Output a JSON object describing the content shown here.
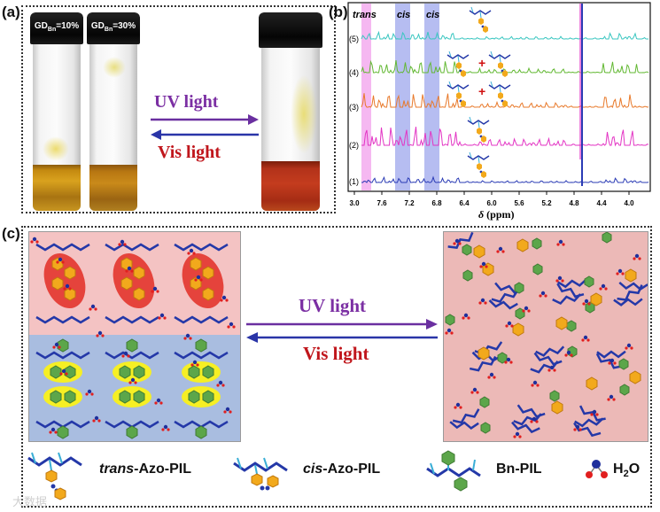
{
  "panel_labels": {
    "a": "(a)",
    "b": "(b)",
    "c": "(c)"
  },
  "vials": {
    "left": {
      "label_base": "GD",
      "label_sub": "Bn",
      "label_value": "=10%"
    },
    "middle": {
      "label_base": "GD",
      "label_sub": "Bn",
      "label_value": "=30%"
    }
  },
  "arrows": {
    "uv_label": "UV light",
    "vis_label": "Vis light"
  },
  "nmr": {
    "region_labels": [
      "trans",
      "cis",
      "cis"
    ],
    "spectra_labels": [
      "(5)",
      "(4)",
      "(3)",
      "(2)",
      "(1)"
    ],
    "x_ticks": [
      "3.0",
      "7.6",
      "7.2",
      "6.8",
      "6.4",
      "6.0",
      "5.6",
      "5.2",
      "4.8",
      "4.4",
      "4.0"
    ],
    "x_axis_label_symbol": "δ",
    "x_axis_label_unit": "(ppm)",
    "colors": {
      "(5)": "#39c6c0",
      "(4)": "#62b832",
      "(3)": "#e8792a",
      "(2)": "#e334c4",
      "(1)": "#2a3bb5"
    },
    "plus_sign": "+"
  },
  "legend": {
    "trans_prefix": "trans",
    "trans_suffix": "-Azo-PIL",
    "cis_prefix": "cis",
    "cis_suffix": "-Azo-PIL",
    "bn": "Bn-PIL",
    "water_base": "H",
    "water_sub": "2",
    "water_end": "O"
  },
  "watermark": "大数据"
}
